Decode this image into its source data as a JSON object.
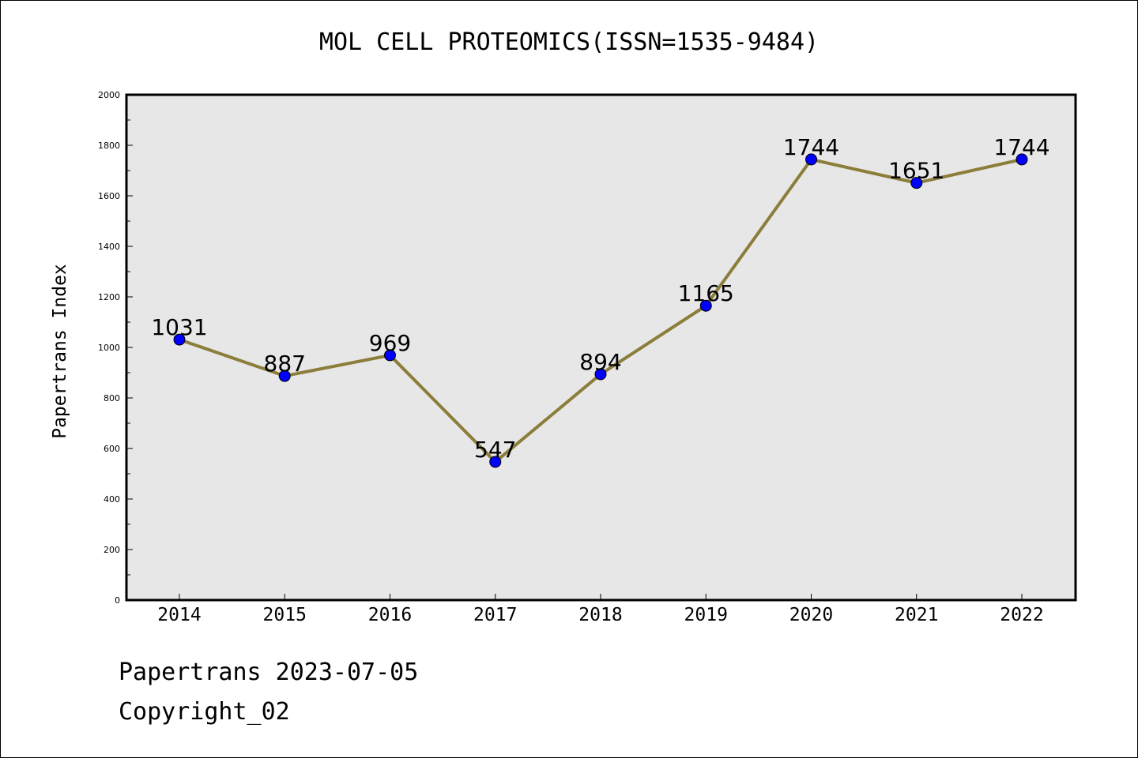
{
  "chart_data": {
    "type": "line",
    "title": "MOL CELL PROTEOMICS(ISSN=1535-9484)",
    "xlabel": "",
    "ylabel": "Papertrans Index",
    "categories": [
      "2014",
      "2015",
      "2016",
      "2017",
      "2018",
      "2019",
      "2020",
      "2021",
      "2022"
    ],
    "values": [
      1031,
      887,
      969,
      547,
      894,
      1165,
      1744,
      1651,
      1744
    ],
    "data_labels": [
      "1031",
      "887",
      "969",
      "547",
      "894",
      "1165",
      "1744",
      "1651",
      "1744"
    ],
    "ylim": [
      0,
      2000
    ],
    "yticks": [
      0,
      200,
      400,
      600,
      800,
      1000,
      1200,
      1400,
      1600,
      1800,
      2000
    ],
    "ytick_labels": [
      "0",
      "200",
      "400",
      "600",
      "800",
      "1000",
      "1200",
      "1400",
      "1600",
      "1800",
      "2000"
    ],
    "grid": false,
    "legend": "none",
    "line_color": "#8b7d3a",
    "marker_color": "#0000ff",
    "plot_background": "#e7e7e7"
  },
  "footer": {
    "line1": "Papertrans 2023-07-05",
    "line2": "Copyright_02"
  }
}
